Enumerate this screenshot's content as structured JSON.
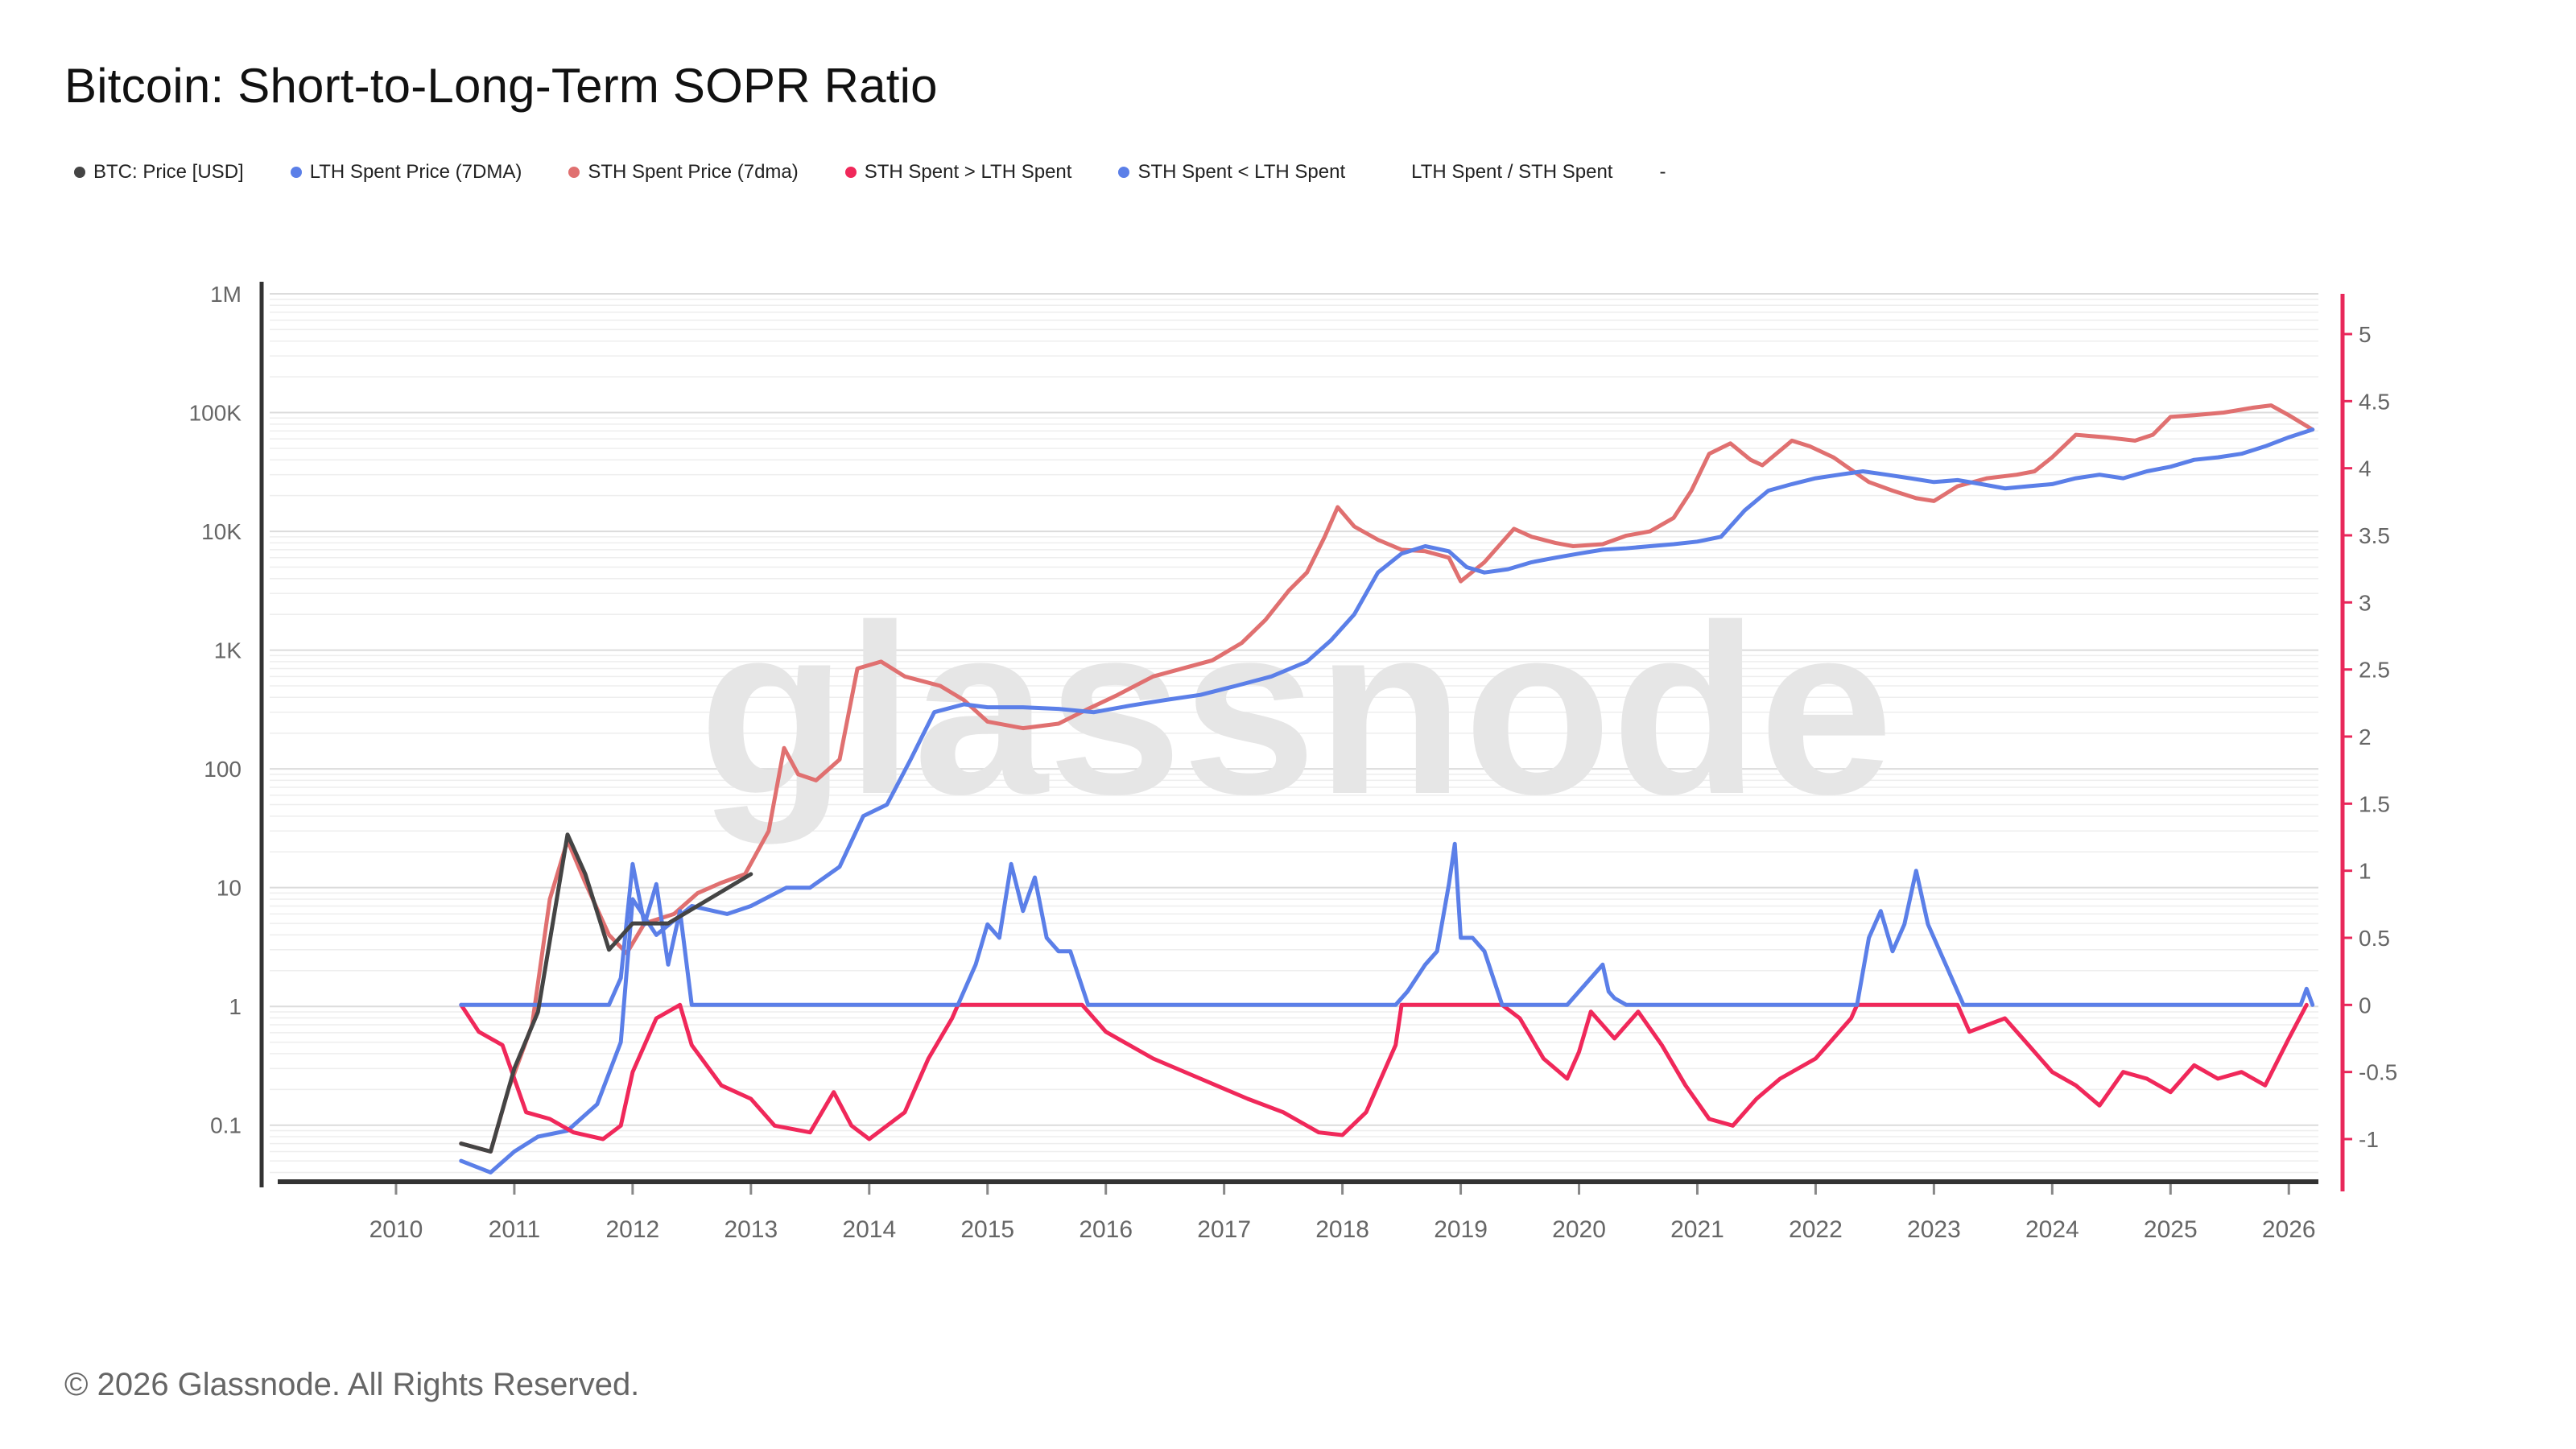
{
  "title": "Bitcoin: Short-to-Long-Term SOPR Ratio",
  "footer": "© 2026 Glassnode. All Rights Reserved.",
  "watermark": "glassnode",
  "legend": [
    {
      "label": "BTC: Price [USD]",
      "color": "#444444"
    },
    {
      "label": "LTH Spent Price (7DMA)",
      "color": "#5b7fe8"
    },
    {
      "label": "STH Spent Price (7dma)",
      "color": "#e07070"
    },
    {
      "label": "STH Spent > LTH Spent",
      "color": "#f0285a"
    },
    {
      "label": "STH Spent < LTH Spent",
      "color": "#5b7fe8"
    },
    {
      "label": "LTH Spent / STH Spent",
      "color": ""
    },
    {
      "label": "-",
      "color": ""
    }
  ],
  "chart_data": {
    "type": "line",
    "xlabel": "",
    "xlim": [
      2009,
      2026.25
    ],
    "x_ticks": [
      "2010",
      "2011",
      "2012",
      "2013",
      "2014",
      "2015",
      "2016",
      "2017",
      "2018",
      "2019",
      "2020",
      "2021",
      "2022",
      "2023",
      "2024",
      "2025",
      "2026"
    ],
    "y_left": {
      "scale": "log",
      "ylim": [
        0.035,
        1000000
      ],
      "ticks": [
        {
          "v": 0.1,
          "label": "0.1"
        },
        {
          "v": 1,
          "label": "1"
        },
        {
          "v": 10,
          "label": "10"
        },
        {
          "v": 100,
          "label": "100"
        },
        {
          "v": 1000,
          "label": "1K"
        },
        {
          "v": 10000,
          "label": "10K"
        },
        {
          "v": 100000,
          "label": "100K"
        },
        {
          "v": 1000000,
          "label": "1M"
        }
      ]
    },
    "y_right": {
      "scale": "linear",
      "ylim": [
        -1.3,
        5.3
      ],
      "ticks": [
        "-1",
        "-0.5",
        "0",
        "0.5",
        "1",
        "1.5",
        "2",
        "2.5",
        "3",
        "3.5",
        "4",
        "4.5",
        "5"
      ]
    },
    "series": [
      {
        "name": "STH Spent Price (7dma)",
        "axis": "left",
        "color": "#e07070",
        "x": [
          2010.55,
          2010.8,
          2010.95,
          2011.15,
          2011.3,
          2011.45,
          2011.6,
          2011.8,
          2011.95,
          2012.1,
          2012.35,
          2012.55,
          2012.75,
          2012.95,
          2013.15,
          2013.28,
          2013.4,
          2013.55,
          2013.75,
          2013.9,
          2014.1,
          2014.3,
          2014.6,
          2014.8,
          2015.0,
          2015.3,
          2015.6,
          2015.85,
          2016.1,
          2016.4,
          2016.6,
          2016.9,
          2017.15,
          2017.35,
          2017.55,
          2017.7,
          2017.85,
          2017.96,
          2018.1,
          2018.3,
          2018.5,
          2018.7,
          2018.9,
          2019.0,
          2019.2,
          2019.45,
          2019.6,
          2019.8,
          2019.95,
          2020.2,
          2020.4,
          2020.6,
          2020.8,
          2020.95,
          2021.1,
          2021.28,
          2021.45,
          2021.55,
          2021.8,
          2021.95,
          2022.15,
          2022.45,
          2022.65,
          2022.85,
          2023.0,
          2023.2,
          2023.45,
          2023.7,
          2023.85,
          2024.0,
          2024.2,
          2024.45,
          2024.7,
          2024.85,
          2025.0,
          2025.2,
          2025.45,
          2025.7,
          2025.85,
          2026.0,
          2026.2
        ],
        "y": [
          0.07,
          0.06,
          0.2,
          0.7,
          8,
          25,
          11,
          4,
          2.8,
          5,
          6,
          9,
          11,
          13,
          30,
          150,
          90,
          80,
          120,
          700,
          800,
          600,
          500,
          380,
          250,
          220,
          240,
          320,
          420,
          600,
          680,
          820,
          1150,
          1800,
          3200,
          4500,
          9000,
          16000,
          11000,
          8500,
          7000,
          6800,
          6000,
          3800,
          5500,
          10500,
          9000,
          8000,
          7500,
          7800,
          9200,
          10000,
          13000,
          22000,
          45000,
          55000,
          40000,
          36000,
          58000,
          52000,
          42000,
          26000,
          22000,
          19000,
          18000,
          24000,
          28000,
          30000,
          32000,
          42000,
          65000,
          62000,
          58000,
          65000,
          92000,
          95000,
          100000,
          110000,
          115000,
          95000,
          72000
        ]
      },
      {
        "name": "LTH Spent Price (7DMA)",
        "axis": "left",
        "color": "#5b7fe8",
        "x": [
          2010.55,
          2010.8,
          2011.0,
          2011.2,
          2011.45,
          2011.7,
          2011.9,
          2012.0,
          2012.2,
          2012.5,
          2012.8,
          2013.0,
          2013.3,
          2013.5,
          2013.75,
          2013.95,
          2014.15,
          2014.35,
          2014.55,
          2014.8,
          2015.0,
          2015.3,
          2015.6,
          2015.9,
          2016.2,
          2016.5,
          2016.8,
          2017.1,
          2017.4,
          2017.7,
          2017.9,
          2018.1,
          2018.3,
          2018.5,
          2018.7,
          2018.9,
          2019.05,
          2019.2,
          2019.4,
          2019.6,
          2019.8,
          2020.0,
          2020.2,
          2020.4,
          2020.6,
          2020.8,
          2021.0,
          2021.2,
          2021.4,
          2021.6,
          2021.8,
          2022.0,
          2022.2,
          2022.4,
          2022.6,
          2022.8,
          2023.0,
          2023.2,
          2023.4,
          2023.6,
          2023.8,
          2024.0,
          2024.2,
          2024.4,
          2024.6,
          2024.8,
          2025.0,
          2025.2,
          2025.4,
          2025.6,
          2025.8,
          2026.0,
          2026.2
        ],
        "y": [
          0.05,
          0.04,
          0.06,
          0.08,
          0.09,
          0.15,
          0.5,
          8,
          4,
          7,
          6,
          7,
          10,
          10,
          15,
          40,
          50,
          120,
          300,
          350,
          330,
          330,
          320,
          300,
          340,
          380,
          420,
          500,
          600,
          800,
          1200,
          2000,
          4500,
          6500,
          7500,
          6800,
          5000,
          4500,
          4800,
          5500,
          6000,
          6500,
          7000,
          7200,
          7500,
          7800,
          8200,
          9000,
          15000,
          22000,
          25000,
          28000,
          30000,
          32000,
          30000,
          28000,
          26000,
          27000,
          25000,
          23000,
          24000,
          25000,
          28000,
          30000,
          28000,
          32000,
          35000,
          40000,
          42000,
          45000,
          52000,
          62000,
          72000
        ]
      },
      {
        "name": "STH Spent > LTH Spent",
        "axis": "right",
        "color": "#f0285a",
        "x": [
          2010.55,
          2010.7,
          2010.9,
          2011.1,
          2011.3,
          2011.5,
          2011.75,
          2011.9,
          2012.0,
          2012.2,
          2012.4,
          2012.5,
          2012.75,
          2013.0,
          2013.2,
          2013.5,
          2013.7,
          2013.85,
          2014.0,
          2014.3,
          2014.5,
          2014.7,
          2014.75,
          2015.0,
          2015.5,
          2015.8,
          2016.0,
          2016.4,
          2016.8,
          2017.2,
          2017.5,
          2017.8,
          2018.0,
          2018.2,
          2018.45,
          2018.5,
          2018.8,
          2019.0,
          2019.2,
          2019.35,
          2019.5,
          2019.7,
          2019.9,
          2020.0,
          2020.1,
          2020.3,
          2020.5,
          2020.7,
          2020.9,
          2021.1,
          2021.3,
          2021.5,
          2021.7,
          2022.0,
          2022.3,
          2022.35,
          2022.6,
          2022.9,
          2023.2,
          2023.3,
          2023.6,
          2023.8,
          2024.0,
          2024.2,
          2024.4,
          2024.6,
          2024.8,
          2025.0,
          2025.2,
          2025.4,
          2025.6,
          2025.8,
          2026.0,
          2026.15
        ],
        "y": [
          0,
          -0.2,
          -0.3,
          -0.8,
          -0.85,
          -0.95,
          -1.0,
          -0.9,
          -0.5,
          -0.1,
          0,
          -0.3,
          -0.6,
          -0.7,
          -0.9,
          -0.95,
          -0.65,
          -0.9,
          -1.0,
          -0.8,
          -0.4,
          -0.1,
          0,
          0,
          0,
          0,
          -0.2,
          -0.4,
          -0.55,
          -0.7,
          -0.8,
          -0.95,
          -0.97,
          -0.8,
          -0.3,
          0,
          0,
          0,
          0,
          0,
          -0.1,
          -0.4,
          -0.55,
          -0.35,
          -0.05,
          -0.25,
          -0.05,
          -0.3,
          -0.6,
          -0.85,
          -0.9,
          -0.7,
          -0.55,
          -0.4,
          -0.1,
          0,
          0,
          0,
          0,
          -0.2,
          -0.1,
          -0.3,
          -0.5,
          -0.6,
          -0.75,
          -0.5,
          -0.55,
          -0.65,
          -0.45,
          -0.55,
          -0.5,
          -0.6,
          -0.25,
          0
        ]
      },
      {
        "name": "STH Spent < LTH Spent",
        "axis": "right",
        "color": "#5b7fe8",
        "x": [
          2010.55,
          2011.8,
          2011.9,
          2012.0,
          2012.1,
          2012.2,
          2012.3,
          2012.4,
          2012.5,
          2014.75,
          2014.9,
          2015.0,
          2015.1,
          2015.2,
          2015.3,
          2015.4,
          2015.5,
          2015.6,
          2015.7,
          2015.85,
          2018.45,
          2018.55,
          2018.7,
          2018.8,
          2018.9,
          2018.95,
          2019.0,
          2019.1,
          2019.2,
          2019.35,
          2019.9,
          2020.2,
          2020.25,
          2020.3,
          2020.4,
          2022.35,
          2022.45,
          2022.55,
          2022.65,
          2022.75,
          2022.85,
          2022.95,
          2023.1,
          2023.25,
          2026.1,
          2026.15,
          2026.2
        ],
        "y": [
          0,
          0,
          0.2,
          1.05,
          0.6,
          0.9,
          0.3,
          0.7,
          0,
          0,
          0.3,
          0.6,
          0.5,
          1.05,
          0.7,
          0.95,
          0.5,
          0.4,
          0.4,
          0,
          0,
          0.1,
          0.3,
          0.4,
          0.9,
          1.2,
          0.5,
          0.5,
          0.4,
          0,
          0,
          0.3,
          0.1,
          0.05,
          0,
          0,
          0.5,
          0.7,
          0.4,
          0.6,
          1.0,
          0.6,
          0.3,
          0,
          0,
          0.12,
          0
        ]
      },
      {
        "name": "BTC: Price [USD]",
        "axis": "left",
        "color": "#444444",
        "x": [
          2010.55,
          2010.8,
          2011.0,
          2011.2,
          2011.45,
          2011.6,
          2011.8,
          2012.0,
          2012.3,
          2013.0
        ],
        "y": [
          0.07,
          0.06,
          0.3,
          0.9,
          28,
          13,
          3,
          5,
          5,
          13
        ]
      }
    ]
  }
}
